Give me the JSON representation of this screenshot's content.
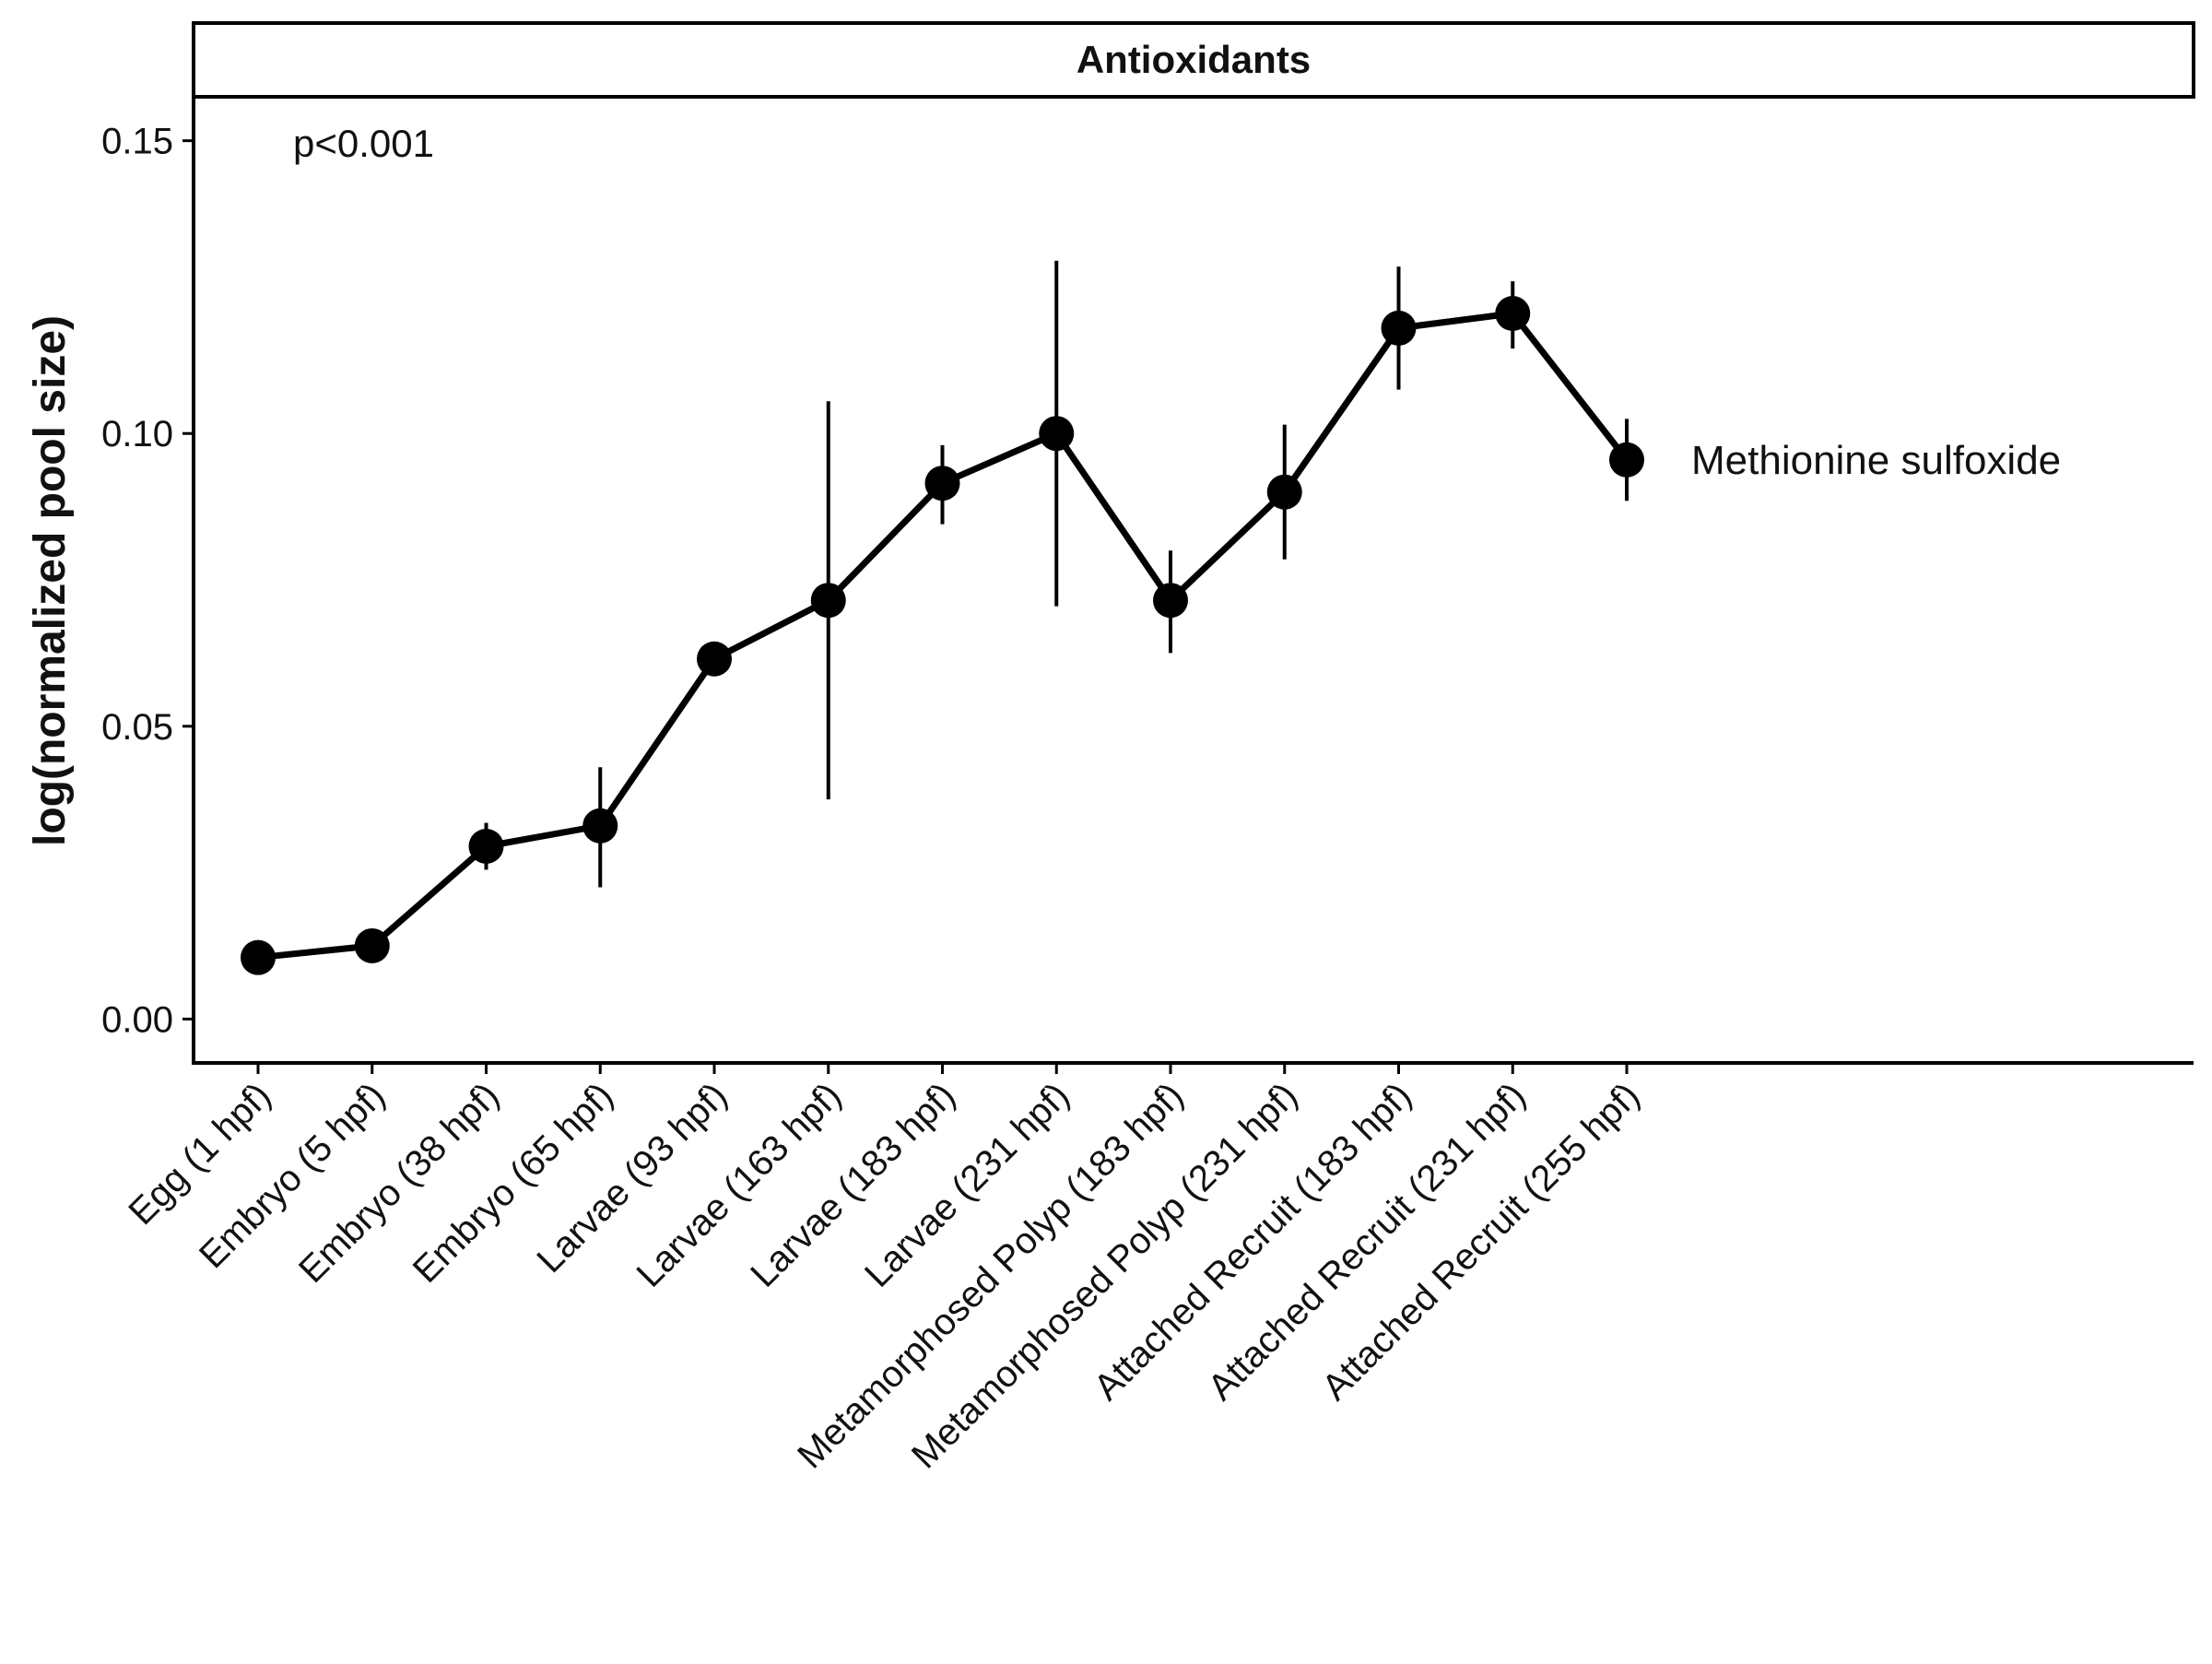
{
  "chart_data": {
    "type": "line",
    "title": "Antioxidants",
    "ylabel": "log(normalized pool size)",
    "xlabel": "",
    "annotation": "p<0.001",
    "ylim": [
      -0.0075,
      0.1575
    ],
    "yticks": [
      0.0,
      0.05,
      0.1,
      0.15
    ],
    "ytick_labels": [
      "0.00",
      "0.05",
      "0.10",
      "0.15"
    ],
    "categories": [
      "Egg (1 hpf)",
      "Embryo (5 hpf)",
      "Embryo (38 hpf)",
      "Embryo (65 hpf)",
      "Larvae (93 hpf)",
      "Larvae (163 hpf)",
      "Larvae (183 hpf)",
      "Larvae (231 hpf)",
      "Metamorphosed Polyp (183 hpf)",
      "Metamorphosed Polyp (231 hpf)",
      "Attached Recruit (183 hpf)",
      "Attached Recruit (231 hpf)",
      "Attached Recruit (255 hpf)"
    ],
    "series": [
      {
        "name": "Methionine sulfoxide",
        "values": [
          0.0105,
          0.0125,
          0.0295,
          0.033,
          0.0615,
          0.0715,
          0.0915,
          0.1,
          0.0715,
          0.09,
          0.118,
          0.1205,
          0.0955
        ],
        "err_low": [
          0.0095,
          0.0115,
          0.0255,
          0.0225,
          0.0605,
          0.0375,
          0.0845,
          0.0705,
          0.0625,
          0.0785,
          0.1075,
          0.1145,
          0.0885
        ],
        "err_high": [
          0.0115,
          0.0135,
          0.0335,
          0.043,
          0.0625,
          0.1055,
          0.098,
          0.1295,
          0.08,
          0.1015,
          0.1285,
          0.126,
          0.1025
        ]
      }
    ],
    "grid": false,
    "legend": "none",
    "colors": {
      "line": "#000000",
      "text": "#111111"
    }
  }
}
